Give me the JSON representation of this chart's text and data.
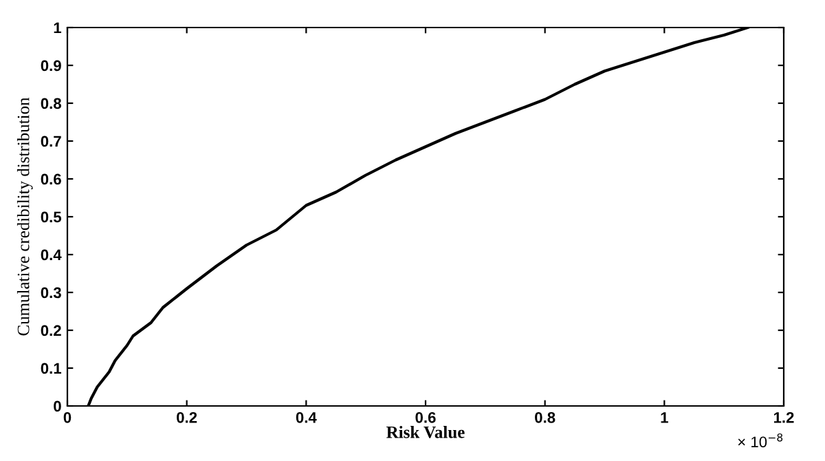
{
  "chart_data": {
    "type": "line",
    "xlabel": "Risk Value",
    "ylabel": "Cumulative credibility distribution",
    "x": [
      0.035,
      0.04,
      0.05,
      0.07,
      0.08,
      0.1,
      0.11,
      0.14,
      0.16,
      0.2,
      0.25,
      0.3,
      0.35,
      0.4,
      0.45,
      0.5,
      0.55,
      0.6,
      0.65,
      0.7,
      0.75,
      0.8,
      0.85,
      0.9,
      0.95,
      1.0,
      1.05,
      1.1,
      1.14
    ],
    "series": [
      {
        "color": "#000000",
        "values": [
          0,
          0.02,
          0.05,
          0.09,
          0.12,
          0.16,
          0.185,
          0.22,
          0.26,
          0.31,
          0.37,
          0.425,
          0.465,
          0.53,
          0.565,
          0.61,
          0.65,
          0.685,
          0.72,
          0.75,
          0.78,
          0.81,
          0.85,
          0.885,
          0.91,
          0.935,
          0.96,
          0.98,
          1.0
        ]
      }
    ],
    "xlim": [
      0,
      1.2
    ],
    "ylim": [
      0,
      1
    ],
    "xticks": [
      0,
      0.2,
      0.4,
      0.6,
      0.8,
      1,
      1.2
    ],
    "yticks": [
      0,
      0.1,
      0.2,
      0.3,
      0.4,
      0.5,
      0.6,
      0.7,
      0.8,
      0.9,
      1
    ],
    "annotations": [
      "× 10$^{−8}$"
    ],
    "grid": false,
    "legend": false,
    "marker": "none",
    "line_style": "solid"
  }
}
